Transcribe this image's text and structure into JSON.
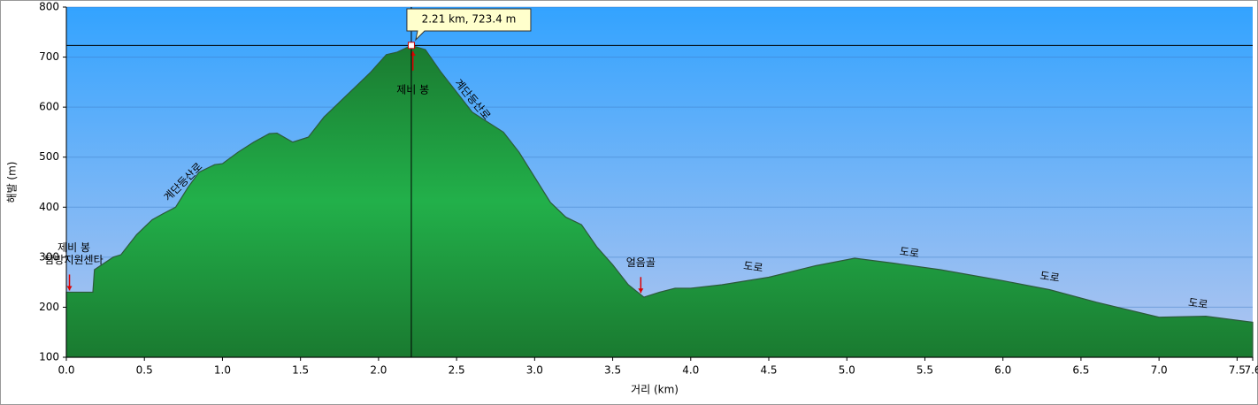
{
  "chart_data": {
    "type": "area",
    "xlabel": "거리   (km)",
    "ylabel": "해발 (m)",
    "x": [
      0,
      0.17,
      0.18,
      0.3,
      0.35,
      0.45,
      0.55,
      0.62,
      0.7,
      0.78,
      0.85,
      0.95,
      1.0,
      1.1,
      1.2,
      1.3,
      1.35,
      1.45,
      1.55,
      1.65,
      1.75,
      1.85,
      1.95,
      2.05,
      2.12,
      2.21,
      2.3,
      2.4,
      2.5,
      2.6,
      2.7,
      2.8,
      2.9,
      3.0,
      3.1,
      3.2,
      3.3,
      3.4,
      3.5,
      3.6,
      3.7,
      3.8,
      3.9,
      4.0,
      4.2,
      4.5,
      4.8,
      5.05,
      5.3,
      5.6,
      6.0,
      6.3,
      6.6,
      7.0,
      7.3,
      7.6
    ],
    "values": [
      230,
      230,
      275,
      300,
      305,
      345,
      375,
      387,
      400,
      440,
      470,
      485,
      487,
      510,
      530,
      547,
      548,
      530,
      540,
      580,
      610,
      640,
      670,
      705,
      710,
      723.4,
      715,
      670,
      630,
      590,
      570,
      550,
      510,
      460,
      410,
      380,
      365,
      320,
      285,
      245,
      220,
      230,
      238,
      238,
      245,
      260,
      283,
      298,
      288,
      275,
      253,
      235,
      210,
      180,
      182,
      170
    ],
    "color": "#1f9e3e",
    "xlim": [
      0,
      7.6
    ],
    "ylim": [
      100,
      800
    ],
    "xticks": [
      {
        "value": 0,
        "label": "0.0"
      },
      0.5,
      {
        "value": 1,
        "label": "1.0"
      },
      1.5,
      {
        "value": 2,
        "label": "2.0"
      },
      2.5,
      {
        "value": 3,
        "label": "3.0"
      },
      3.5,
      {
        "value": 4,
        "label": "4.0"
      },
      4.5,
      {
        "value": 5,
        "label": "5.0"
      },
      5.5,
      {
        "value": 6,
        "label": "6.0"
      },
      6.5,
      {
        "value": 7,
        "label": "7.0"
      },
      7.5,
      7.6
    ],
    "yticks": [
      100,
      200,
      300,
      400,
      500,
      600,
      700,
      800
    ],
    "grid": true,
    "waypoints": [
      {
        "label": [
          "제비 봉",
          "탐방지원센타"
        ],
        "x": 0.02
      },
      {
        "label": [
          "제비 봉"
        ],
        "x": 2.22
      },
      {
        "label": [
          "얼음골"
        ],
        "x": 3.68
      }
    ],
    "segments": [
      {
        "label": "계단등산로",
        "x": 0.75
      },
      {
        "label": "계단등산로",
        "x": 2.6
      },
      {
        "label": "도로",
        "x": 4.4
      },
      {
        "label": "도로",
        "x": 5.4
      },
      {
        "label": "도로",
        "x": 6.3
      },
      {
        "label": "도로",
        "x": 7.25
      }
    ],
    "cursor": {
      "x": 2.21,
      "y": 723.4,
      "label": "2.21 km, 723.4 m"
    }
  }
}
